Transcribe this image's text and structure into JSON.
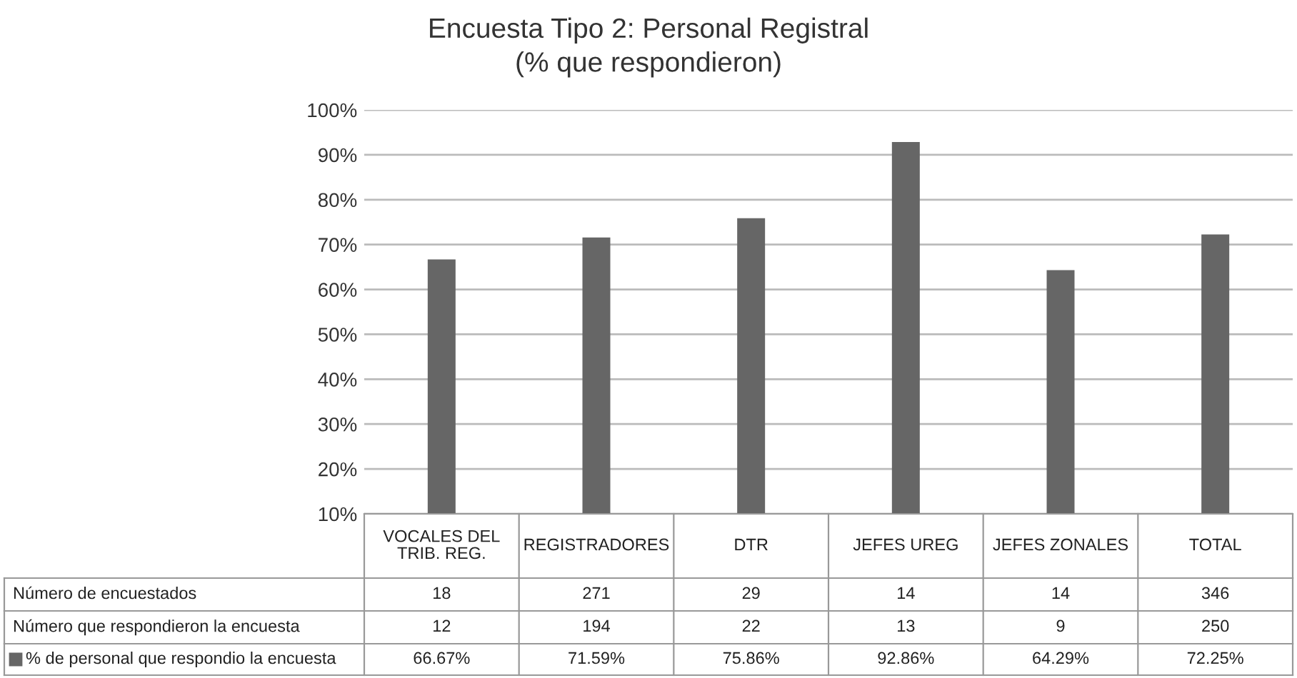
{
  "chart_data": [
    {
      "type": "bar",
      "title": "Encuesta Tipo 2: Personal Registral",
      "subtitle": "(% que respondieron)",
      "categories": [
        "VOCALES DEL\nTRIB. REG.",
        "REGISTRADORES",
        "DTR",
        "JEFES UREG",
        "JEFES ZONALES",
        "TOTAL"
      ],
      "series": [
        {
          "name": "% de personal que respondio la encuesta",
          "color": "#666666",
          "values": [
            66.67,
            71.59,
            75.86,
            92.86,
            64.29,
            72.25
          ],
          "value_labels": [
            "66.67%",
            "71.59%",
            "75.86%",
            "92.86%",
            "64.29%",
            "72.25%"
          ]
        }
      ],
      "ylim": [
        10,
        100
      ],
      "yticks": [
        {
          "value": 10,
          "label": "10%"
        },
        {
          "value": 20,
          "label": "20%"
        },
        {
          "value": 30,
          "label": "30%"
        },
        {
          "value": 40,
          "label": "40%"
        },
        {
          "value": 50,
          "label": "50%"
        },
        {
          "value": 60,
          "label": "60%"
        },
        {
          "value": 70,
          "label": "70%"
        },
        {
          "value": 80,
          "label": "80%"
        },
        {
          "value": 90,
          "label": "90%"
        },
        {
          "value": 100,
          "label": "100%"
        }
      ],
      "grid": "y"
    },
    {
      "type": "other",
      "annotations": [
        "Número de encuestados",
        "18",
        "271",
        "29",
        "14",
        "14",
        "346",
        "Número que respondieron la encuesta",
        "12",
        "194",
        "22",
        "13",
        "9",
        "250"
      ]
    }
  ]
}
